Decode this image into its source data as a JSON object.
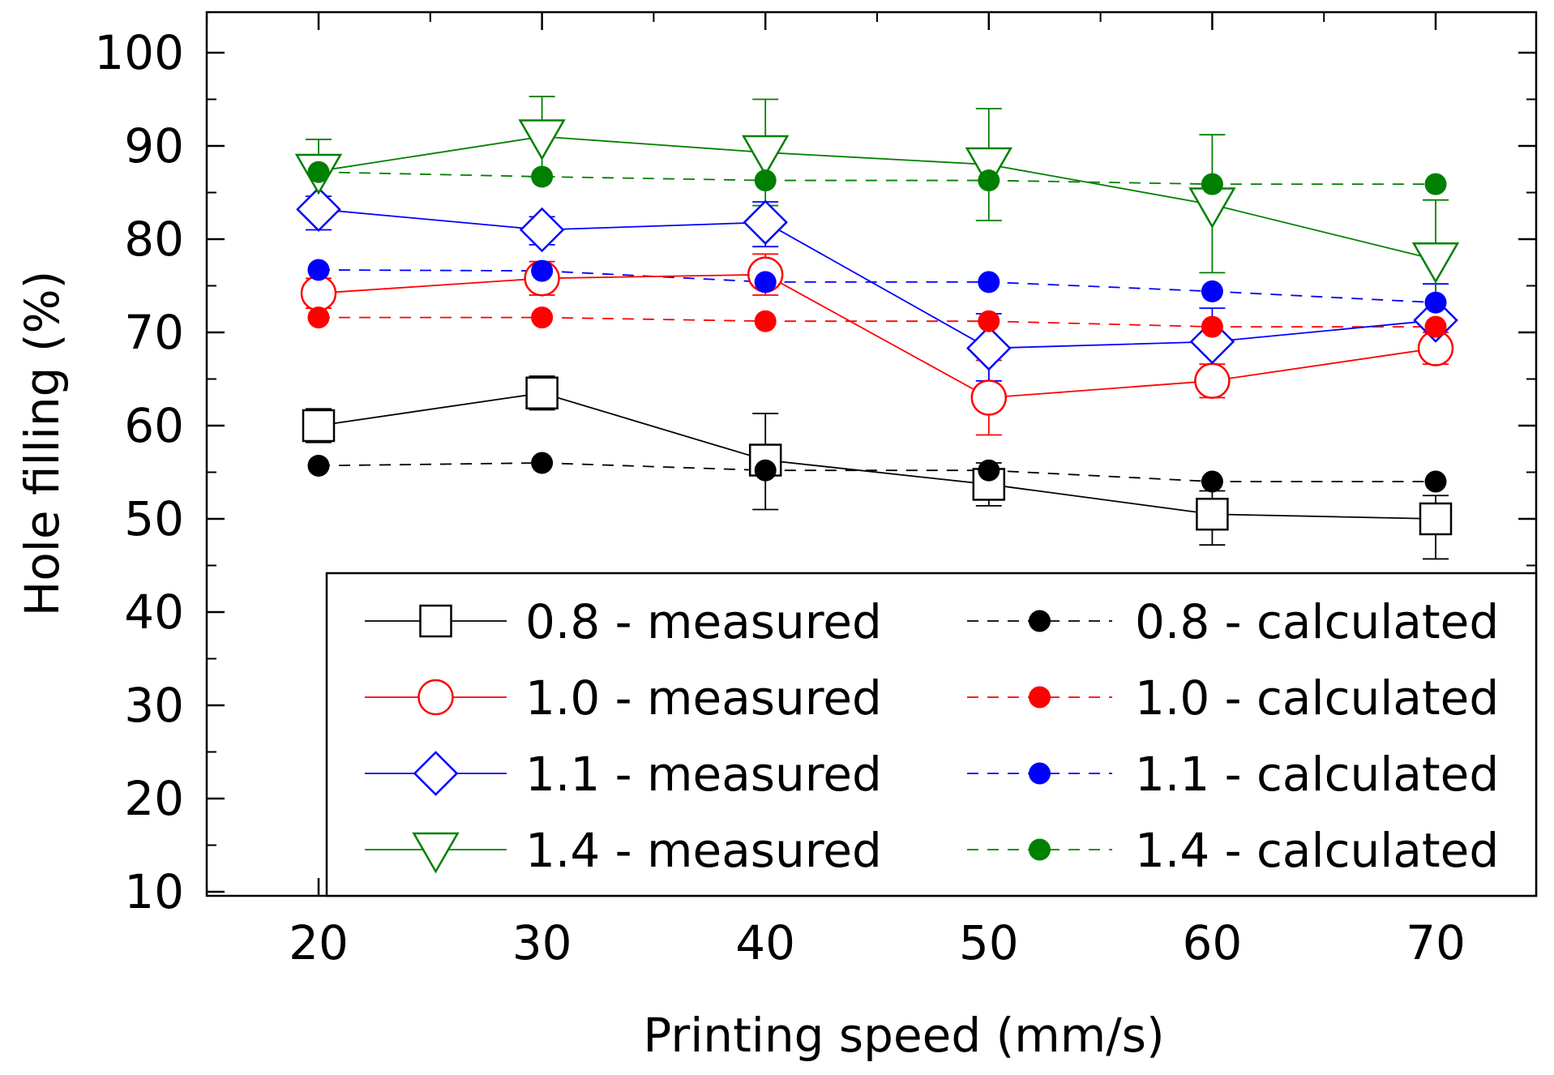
{
  "chart_data": {
    "type": "line",
    "title": "",
    "xlabel": "Printing speed (mm/s)",
    "ylabel": "Hole filling (%)",
    "xlim": [
      15,
      75
    ],
    "ylim": [
      10,
      105
    ],
    "x": [
      20,
      30,
      40,
      50,
      60,
      70
    ],
    "xticks": [
      "20",
      "30",
      "40",
      "50",
      "60",
      "70"
    ],
    "yticks": [
      "10",
      "20",
      "30",
      "40",
      "50",
      "60",
      "70",
      "80",
      "90",
      "100"
    ],
    "grid": false,
    "legend_position": "bottom-right",
    "series": [
      {
        "name": "0.8 - measured",
        "kind": "measured",
        "marker": "square",
        "color": "#000000",
        "values": [
          60.0,
          63.5,
          56.3,
          53.7,
          50.5,
          50.0
        ],
        "err_upper": [
          61.8,
          65.3,
          61.3,
          56.0,
          53.0,
          52.5
        ],
        "err_lower": [
          58.2,
          61.7,
          51.0,
          51.4,
          47.2,
          45.7
        ]
      },
      {
        "name": "1.0 - measured",
        "kind": "measured",
        "marker": "circle",
        "color": "#ff0000",
        "values": [
          74.2,
          75.8,
          76.2,
          63.0,
          64.8,
          68.3
        ],
        "err_upper": [
          75.8,
          77.6,
          78.4,
          67.0,
          66.6,
          70.0
        ],
        "err_lower": [
          72.6,
          74.0,
          74.0,
          59.0,
          63.0,
          66.6
        ]
      },
      {
        "name": "1.1 - measured",
        "kind": "measured",
        "marker": "diamond",
        "color": "#0000ff",
        "values": [
          83.2,
          81.0,
          81.8,
          68.3,
          69.0,
          71.3
        ],
        "err_upper": [
          84.6,
          82.4,
          84.0,
          72.0,
          72.6,
          75.2
        ],
        "err_lower": [
          81.0,
          79.4,
          79.2,
          64.8,
          65.4,
          67.6
        ]
      },
      {
        "name": "1.4 - measured",
        "kind": "measured",
        "marker": "triangle-down",
        "color": "#008000",
        "values": [
          87.3,
          91.0,
          89.3,
          88.0,
          83.7,
          77.8
        ],
        "err_upper": [
          90.7,
          95.3,
          95.0,
          94.0,
          91.2,
          84.2
        ],
        "err_lower": [
          83.9,
          86.7,
          83.6,
          82.0,
          76.4,
          71.4
        ]
      },
      {
        "name": "0.8 - calculated",
        "kind": "calculated",
        "marker": "dot",
        "color": "#000000",
        "values": [
          55.7,
          56.0,
          55.2,
          55.2,
          54.0,
          54.0
        ]
      },
      {
        "name": "1.0 - calculated",
        "kind": "calculated",
        "marker": "dot",
        "color": "#ff0000",
        "values": [
          71.6,
          71.6,
          71.2,
          71.2,
          70.6,
          70.6
        ]
      },
      {
        "name": "1.1 - calculated",
        "kind": "calculated",
        "marker": "dot",
        "color": "#0000ff",
        "values": [
          76.7,
          76.6,
          75.4,
          75.4,
          74.4,
          73.2
        ]
      },
      {
        "name": "1.4 - calculated",
        "kind": "calculated",
        "marker": "dot",
        "color": "#008000",
        "values": [
          87.2,
          86.7,
          86.3,
          86.3,
          85.9,
          85.9
        ]
      }
    ]
  }
}
